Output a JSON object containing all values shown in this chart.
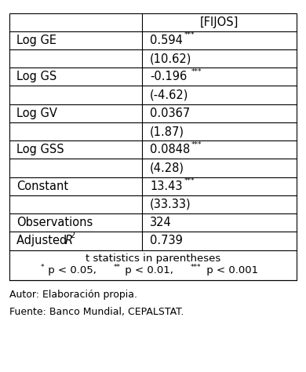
{
  "col_header": "[FIJOS]",
  "rows": [
    {
      "label": "Log GE",
      "value": "0.594",
      "stars": "***",
      "tstat": "(10.62)",
      "has_tstat": true
    },
    {
      "label": "Log GS",
      "value": "-0.196",
      "stars": "***",
      "tstat": "(-4.62)",
      "has_tstat": true
    },
    {
      "label": "Log GV",
      "value": "0.0367",
      "stars": "",
      "tstat": "(1.87)",
      "has_tstat": true
    },
    {
      "label": "Log GSS",
      "value": "0.0848",
      "stars": "***",
      "tstat": "(4.28)",
      "has_tstat": true
    },
    {
      "label": "Constant",
      "value": "13.43",
      "stars": "***",
      "tstat": "(33.33)",
      "has_tstat": true
    },
    {
      "label": "Observations",
      "value": "324",
      "stars": "",
      "tstat": null,
      "has_tstat": false
    },
    {
      "label": "Adjusted R2",
      "value": "0.739",
      "stars": "",
      "tstat": null,
      "has_tstat": false
    }
  ],
  "footer_line1": "t statistics in parentheses",
  "footer_line2_parts": [
    {
      "text": "*",
      "super": true
    },
    {
      "text": " p < 0.05, ",
      "super": false
    },
    {
      "text": "**",
      "super": true
    },
    {
      "text": " p < 0.01, ",
      "super": false
    },
    {
      "text": "***",
      "super": true
    },
    {
      "text": " p < 0.001",
      "super": false
    }
  ],
  "note1": "Autor: Elaboración propia.",
  "note2": "Fuente: Banco Mundial, CEPALSTAT.",
  "bg_color": "#ffffff",
  "border_color": "#000000",
  "text_color": "#000000",
  "font_size": 10.5,
  "small_font_size": 6.5,
  "footer_font_size": 9.5
}
